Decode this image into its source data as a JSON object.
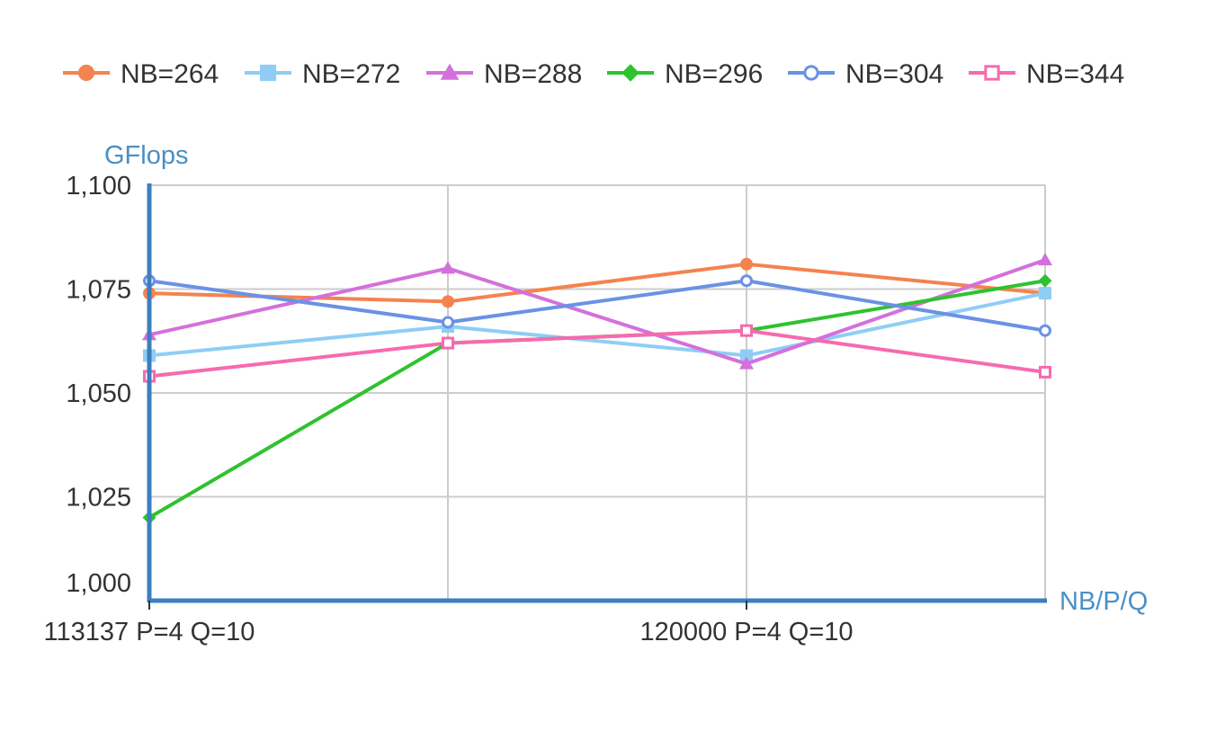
{
  "chart_data": {
    "type": "line",
    "ylabel": "GFlops",
    "xlabel": "NB/P/Q",
    "ylim": [
      1000,
      1100
    ],
    "y_ticks": [
      {
        "value": 1000,
        "label": "1,000"
      },
      {
        "value": 1025,
        "label": "1,025"
      },
      {
        "value": 1050,
        "label": "1,050"
      },
      {
        "value": 1075,
        "label": "1,075"
      },
      {
        "value": 1100,
        "label": "1,100"
      }
    ],
    "categories": [
      "113137 P=4 Q=10",
      "",
      "120000 P=4 Q=10",
      ""
    ],
    "x_tick_labels": [
      {
        "index": 0,
        "label": "113137 P=4 Q=10"
      },
      {
        "index": 2,
        "label": "120000 P=4 Q=10"
      }
    ],
    "grid": true,
    "legend_position": "top",
    "series": [
      {
        "name": "NB=264",
        "color": "#f4834e",
        "marker": "circle",
        "values": [
          1074,
          1072,
          1081,
          1074
        ]
      },
      {
        "name": "NB=272",
        "color": "#8fcdf5",
        "marker": "square",
        "values": [
          1059,
          1066,
          1059,
          1074
        ]
      },
      {
        "name": "NB=288",
        "color": "#d470dc",
        "marker": "triangle",
        "values": [
          1064,
          1080,
          1057,
          1082
        ]
      },
      {
        "name": "NB=296",
        "color": "#2fc22f",
        "marker": "diamond",
        "values": [
          1020,
          1062,
          1065,
          1077
        ]
      },
      {
        "name": "NB=304",
        "color": "#6a92e4",
        "marker": "circle-open",
        "values": [
          1077,
          1067,
          1077,
          1065
        ]
      },
      {
        "name": "NB=344",
        "color": "#f76aaf",
        "marker": "square-open",
        "values": [
          1054,
          1062,
          1065,
          1055
        ]
      }
    ]
  }
}
